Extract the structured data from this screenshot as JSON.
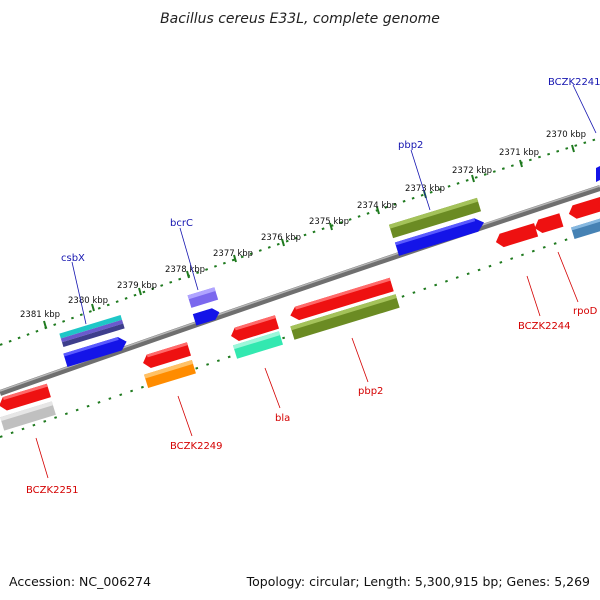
{
  "title": "Bacillus cereus E33L, complete genome",
  "footer": {
    "accession": "Accession: NC_006274",
    "summary": "Topology: circular; Length: 5,300,915 bp; Genes: 5,269"
  },
  "ticks": [
    "2370 kbp",
    "2371 kbp",
    "2372 kbp",
    "2373 kbp",
    "2374 kbp",
    "2375 kbp",
    "2376 kbp",
    "2377 kbp",
    "2378 kbp",
    "2379 kbp",
    "2380 kbp",
    "2381 kbp"
  ],
  "forward_gene_labels": [
    "BCZK2241",
    "pbp2",
    "bcrC",
    "csbX"
  ],
  "reverse_gene_labels": [
    "rpoD",
    "BCZK2244",
    "pbp2",
    "bla",
    "BCZK2249",
    "BCZK2251"
  ],
  "colors": {
    "red": "#ee1111",
    "blue": "#1414e8",
    "olive": "#6b8b23",
    "violet": "#7b68ee",
    "teal": "#1fc7c7",
    "aqua": "#33e8b0",
    "orange": "#ff8c00",
    "silver": "#c0c0c0",
    "steel": "#4682b4",
    "backbone": "#7d7d7d",
    "tick": "#1f7a1f"
  }
}
